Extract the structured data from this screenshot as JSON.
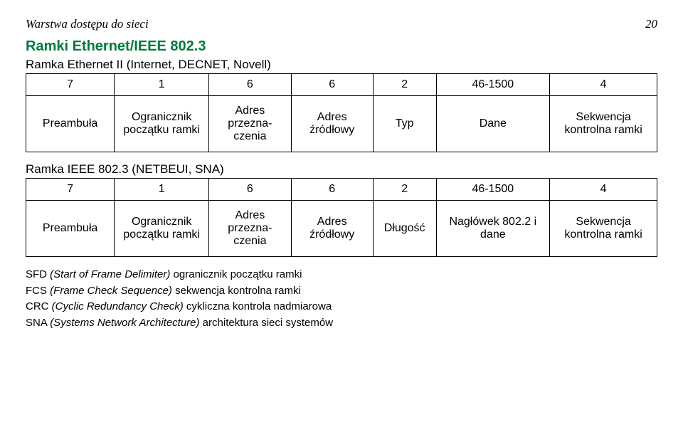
{
  "header": {
    "title": "Warstwa dostępu do sieci",
    "page": "20"
  },
  "section_title": "Ramki Ethernet/IEEE 802.3",
  "table1": {
    "subtitle": "Ramka Ethernet II (Internet, DECNET, Novell)",
    "nums": [
      "7",
      "1",
      "6",
      "6",
      "2",
      "46-1500",
      "4"
    ],
    "labels": [
      "Preambuła",
      "Ogranicznik początku ramki",
      "Adres przezna­czenia",
      "Adres źródłowy",
      "Typ",
      "Dane",
      "Sekwencja kontrolna ramki"
    ]
  },
  "table2": {
    "subtitle": "Ramka IEEE 802.3 (NETBEUI, SNA)",
    "nums": [
      "7",
      "1",
      "6",
      "6",
      "2",
      "46-1500",
      "4"
    ],
    "labels": [
      "Preambuła",
      "Ogranicznik początku ramki",
      "Adres przezna­czenia",
      "Adres źródłowy",
      "Długość",
      "Nagłówek 802.2 i dane",
      "Sekwencja kontrolna ramki"
    ]
  },
  "footnotes": [
    {
      "abbr": "SFD",
      "exp": "(Start of Frame Delimiter)",
      "desc": " ogranicznik początku ramki"
    },
    {
      "abbr": "FCS",
      "exp": "(Frame Check Sequence)",
      "desc": " sekwencja kontrolna ramki"
    },
    {
      "abbr": "CRC",
      "exp": "(Cyclic Redundancy Check)",
      "desc": " cykliczna kontrola nadmiarowa"
    },
    {
      "abbr": "SNA",
      "exp": "(Systems Network Architecture)",
      "desc": " architektura sieci systemów"
    }
  ],
  "col_widths": [
    "14%",
    "15%",
    "13%",
    "13%",
    "10%",
    "18%",
    "17%"
  ]
}
